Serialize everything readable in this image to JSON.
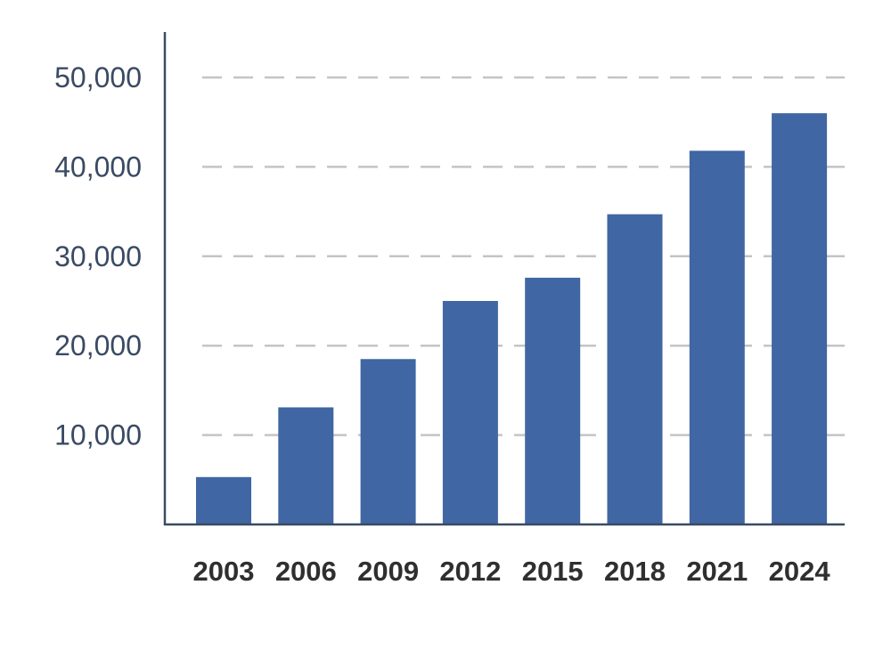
{
  "colors": {
    "bar": "#4066A3",
    "gridline": "#C4C4C4",
    "axis": "#3A4A63",
    "y_tick_text": "#3A4A63",
    "x_tick_text": "#2F2F2F",
    "background": "#FFFFFF"
  },
  "chart_data": {
    "type": "bar",
    "title": "",
    "xlabel": "",
    "ylabel": "",
    "categories": [
      "2003",
      "2006",
      "2009",
      "2012",
      "2015",
      "2018",
      "2021",
      "2024"
    ],
    "values": [
      5300,
      13100,
      18500,
      25000,
      27600,
      34700,
      41800,
      46000
    ],
    "ylim": [
      0,
      55000
    ],
    "yticks": [
      10000,
      20000,
      30000,
      40000,
      50000
    ],
    "ytick_labels": [
      "10,000",
      "20,000",
      "30,000",
      "40,000",
      "50,000"
    ],
    "grid": "horizontal-dashed",
    "legend": "none"
  }
}
